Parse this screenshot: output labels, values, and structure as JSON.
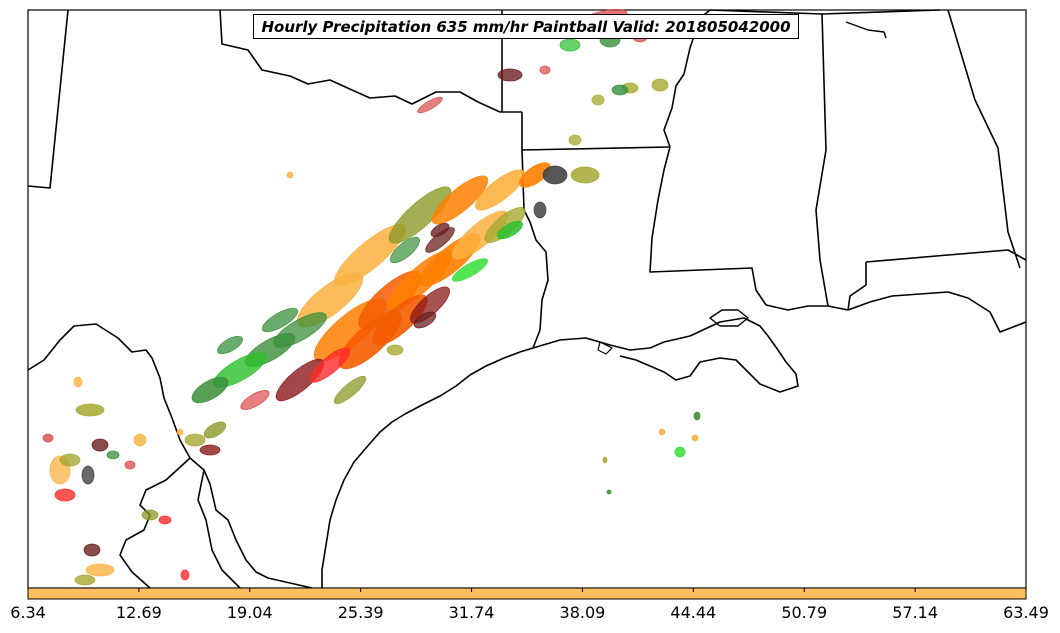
{
  "map": {
    "title": "Hourly Precipitation 635 mm/hr Paintball Valid: 201805042000",
    "colors": {
      "light_orange": "#fbb040",
      "orange": "#ff7f00",
      "dark_orange": "#f45c00",
      "green": "#2bbf2b",
      "bright_green": "#36e036",
      "dark_green": "#3a8f3a",
      "olive": "#8c9a2a",
      "khaki": "#a6a832",
      "brown_red": "#8b1a1a",
      "maroon": "#6b1f1f",
      "red": "#ff2a2a",
      "rose": "#d94a4a",
      "dark_gray": "#444444",
      "colorbar": "#fdbf5f"
    }
  },
  "colorbar": {
    "ticks": [
      "6.34",
      "12.69",
      "19.04",
      "25.39",
      "31.74",
      "38.09",
      "44.44",
      "50.79",
      "57.14",
      "63.49"
    ]
  }
}
